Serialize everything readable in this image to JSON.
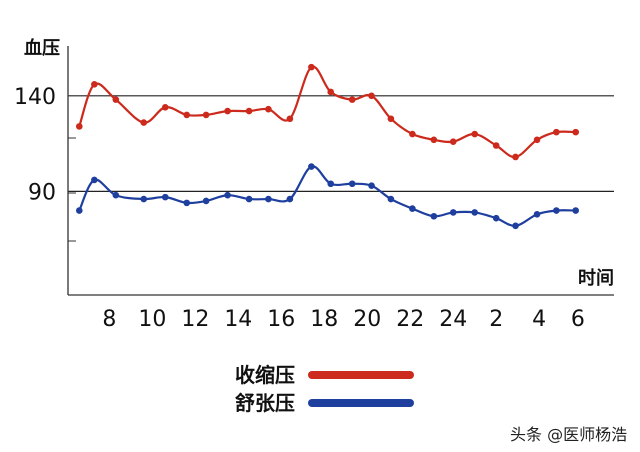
{
  "chart_data": {
    "type": "line",
    "ylabel": "血压",
    "xlabel": "时间",
    "yticks": [
      90,
      140
    ],
    "ylim": [
      40,
      165
    ],
    "xticks": [
      "8",
      "10",
      "12",
      "14",
      "16",
      "18",
      "20",
      "22",
      "24",
      "2",
      "4",
      "6"
    ],
    "x": [
      6.6,
      7.3,
      8.3,
      9.6,
      10.6,
      11.6,
      12.5,
      13.5,
      14.5,
      15.4,
      16.4,
      17.4,
      18.3,
      19.3,
      20.2,
      21.1,
      22.1,
      23.1,
      24.0,
      25.0,
      26.0,
      26.9,
      27.9,
      28.8,
      29.7
    ],
    "grid": "horizontal lines at 90 and 140",
    "legend": "bottom-center",
    "series": [
      {
        "name": "收缩压",
        "color": "#cc2a1c",
        "values": [
          124,
          146,
          138,
          126,
          134,
          130,
          130,
          132,
          132,
          133,
          128,
          155,
          142,
          138,
          140,
          128,
          120,
          117,
          116,
          120,
          114,
          108,
          117,
          121,
          121
        ]
      },
      {
        "name": "舒张压",
        "color": "#1f3f9f",
        "values": [
          80,
          96,
          88,
          86,
          87,
          84,
          85,
          88,
          86,
          86,
          86,
          103,
          94,
          94,
          93,
          86,
          81,
          77,
          79,
          79,
          76,
          72,
          78,
          80,
          80
        ]
      }
    ]
  },
  "watermark": "头条 @医师杨浩"
}
